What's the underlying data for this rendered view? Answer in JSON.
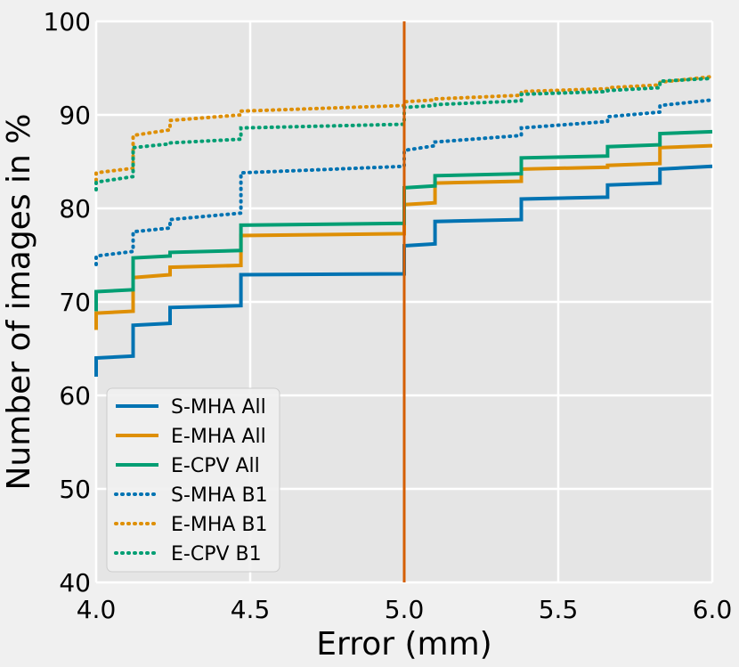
{
  "chart_data": {
    "type": "line",
    "xlabel": "Error (mm)",
    "ylabel": "Number of images in %",
    "xlim": [
      4.0,
      6.0
    ],
    "ylim": [
      40,
      100
    ],
    "xticks": [
      "4.0",
      "4.5",
      "5.0",
      "5.5",
      "6.0"
    ],
    "yticks": [
      "40",
      "50",
      "60",
      "70",
      "80",
      "90",
      "100"
    ],
    "grid": true,
    "legend_position": "lower-left",
    "vline": {
      "x": 5.0,
      "color": "#d55e00"
    },
    "series": [
      {
        "name": "S-MHA All",
        "style": "solid",
        "color": "#0173b2",
        "points": [
          [
            4.0,
            62
          ],
          [
            4.0,
            64
          ],
          [
            4.12,
            64.2
          ],
          [
            4.12,
            67.5
          ],
          [
            4.24,
            67.7
          ],
          [
            4.24,
            69.4
          ],
          [
            4.47,
            69.6
          ],
          [
            4.47,
            72.9
          ],
          [
            5.0,
            73.0
          ],
          [
            5.0,
            76.0
          ],
          [
            5.1,
            76.2
          ],
          [
            5.1,
            78.6
          ],
          [
            5.38,
            78.8
          ],
          [
            5.38,
            81.0
          ],
          [
            5.66,
            81.2
          ],
          [
            5.66,
            82.5
          ],
          [
            5.83,
            82.7
          ],
          [
            5.83,
            84.2
          ],
          [
            6.0,
            84.5
          ]
        ]
      },
      {
        "name": "E-MHA All",
        "style": "solid",
        "color": "#de8f05",
        "points": [
          [
            4.0,
            67
          ],
          [
            4.0,
            68.8
          ],
          [
            4.12,
            69.0
          ],
          [
            4.12,
            72.6
          ],
          [
            4.24,
            72.9
          ],
          [
            4.24,
            73.7
          ],
          [
            4.47,
            73.9
          ],
          [
            4.47,
            77.1
          ],
          [
            5.0,
            77.3
          ],
          [
            5.0,
            80.4
          ],
          [
            5.1,
            80.6
          ],
          [
            5.1,
            82.7
          ],
          [
            5.38,
            82.9
          ],
          [
            5.38,
            84.2
          ],
          [
            5.66,
            84.4
          ],
          [
            5.66,
            84.6
          ],
          [
            5.83,
            84.8
          ],
          [
            5.83,
            86.5
          ],
          [
            6.0,
            86.7
          ]
        ]
      },
      {
        "name": "E-CPV All",
        "style": "solid",
        "color": "#029e73",
        "points": [
          [
            4.0,
            69
          ],
          [
            4.0,
            71.1
          ],
          [
            4.12,
            71.3
          ],
          [
            4.12,
            74.7
          ],
          [
            4.24,
            74.9
          ],
          [
            4.24,
            75.3
          ],
          [
            4.47,
            75.5
          ],
          [
            4.47,
            78.2
          ],
          [
            5.0,
            78.4
          ],
          [
            5.0,
            82.2
          ],
          [
            5.1,
            82.4
          ],
          [
            5.1,
            83.5
          ],
          [
            5.38,
            83.7
          ],
          [
            5.38,
            85.4
          ],
          [
            5.66,
            85.6
          ],
          [
            5.66,
            86.6
          ],
          [
            5.83,
            86.8
          ],
          [
            5.83,
            88.0
          ],
          [
            6.0,
            88.2
          ]
        ]
      },
      {
        "name": "S-MHA B1",
        "style": "dotted",
        "color": "#0173b2",
        "points": [
          [
            4.0,
            74
          ],
          [
            4.0,
            74.9
          ],
          [
            4.12,
            75.4
          ],
          [
            4.12,
            77.5
          ],
          [
            4.24,
            77.9
          ],
          [
            4.24,
            78.8
          ],
          [
            4.47,
            79.5
          ],
          [
            4.47,
            83.8
          ],
          [
            5.0,
            84.5
          ],
          [
            5.0,
            86.2
          ],
          [
            5.1,
            86.7
          ],
          [
            5.1,
            87.1
          ],
          [
            5.38,
            87.8
          ],
          [
            5.38,
            88.6
          ],
          [
            5.66,
            89.3
          ],
          [
            5.66,
            89.8
          ],
          [
            5.83,
            90.3
          ],
          [
            5.83,
            91.0
          ],
          [
            6.0,
            91.6
          ]
        ]
      },
      {
        "name": "E-MHA B1",
        "style": "dotted",
        "color": "#de8f05",
        "points": [
          [
            4.0,
            83
          ],
          [
            4.0,
            83.8
          ],
          [
            4.12,
            84.3
          ],
          [
            4.12,
            87.8
          ],
          [
            4.24,
            88.4
          ],
          [
            4.24,
            89.4
          ],
          [
            4.47,
            90.0
          ],
          [
            4.47,
            90.4
          ],
          [
            5.0,
            91.0
          ],
          [
            5.0,
            91.4
          ],
          [
            5.1,
            91.6
          ],
          [
            5.1,
            91.7
          ],
          [
            5.38,
            92.1
          ],
          [
            5.38,
            92.5
          ],
          [
            5.66,
            92.8
          ],
          [
            5.66,
            92.9
          ],
          [
            5.83,
            93.2
          ],
          [
            5.83,
            93.5
          ],
          [
            6.0,
            94.1
          ]
        ]
      },
      {
        "name": "E-CPV B1",
        "style": "dotted",
        "color": "#029e73",
        "points": [
          [
            4.0,
            82
          ],
          [
            4.0,
            82.8
          ],
          [
            4.12,
            83.4
          ],
          [
            4.12,
            86.5
          ],
          [
            4.24,
            86.9
          ],
          [
            4.24,
            87.0
          ],
          [
            4.47,
            87.4
          ],
          [
            4.47,
            88.6
          ],
          [
            5.0,
            89.0
          ],
          [
            5.0,
            90.8
          ],
          [
            5.1,
            91.0
          ],
          [
            5.1,
            91.1
          ],
          [
            5.38,
            91.5
          ],
          [
            5.38,
            92.2
          ],
          [
            5.66,
            92.5
          ],
          [
            5.66,
            92.6
          ],
          [
            5.83,
            92.9
          ],
          [
            5.83,
            93.6
          ],
          [
            6.0,
            93.9
          ]
        ]
      }
    ]
  }
}
